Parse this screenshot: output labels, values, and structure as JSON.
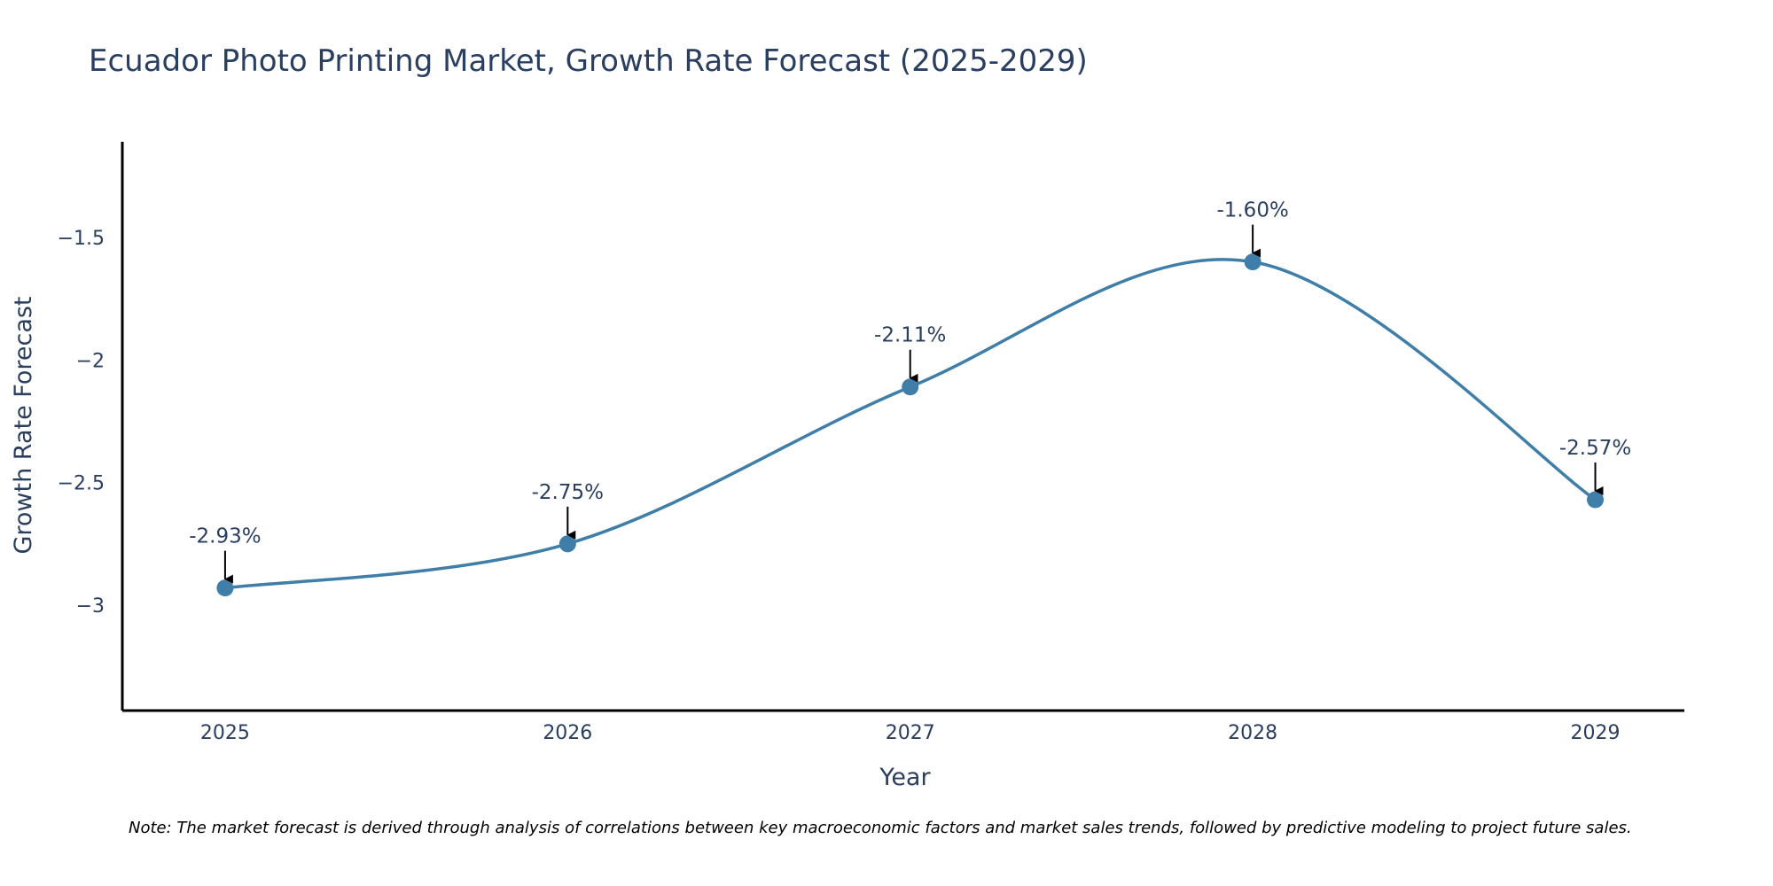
{
  "chart_data": {
    "type": "line",
    "title": "Ecuador Photo Printing Market, Growth Rate Forecast (2025-2029)",
    "xlabel": "Year",
    "ylabel": "Growth Rate Forecast",
    "x": [
      "2025",
      "2026",
      "2027",
      "2028",
      "2029"
    ],
    "series": [
      {
        "name": "Growth Rate Forecast",
        "values": [
          -2.93,
          -2.75,
          -2.11,
          -1.6,
          -2.57
        ],
        "labels": [
          "-2.93%",
          "-2.75%",
          "-2.11%",
          "-1.60%",
          "-2.57%"
        ]
      }
    ],
    "xlim": [
      2024.7,
      2029.26
    ],
    "ylim": [
      -3.43,
      -1.11
    ],
    "yticks": [
      -1.5,
      -2,
      -2.5,
      -3
    ],
    "ytick_labels": [
      "−1.5",
      "−2",
      "−2.5",
      "−3"
    ],
    "grid": false,
    "line_color": "#3f7ea8",
    "marker_color": "#3f7ea8",
    "annotation_arrows": true
  },
  "note": "Note: The market forecast is derived through analysis of correlations between key macroeconomic factors and market sales trends, followed by predictive modeling to project future sales."
}
